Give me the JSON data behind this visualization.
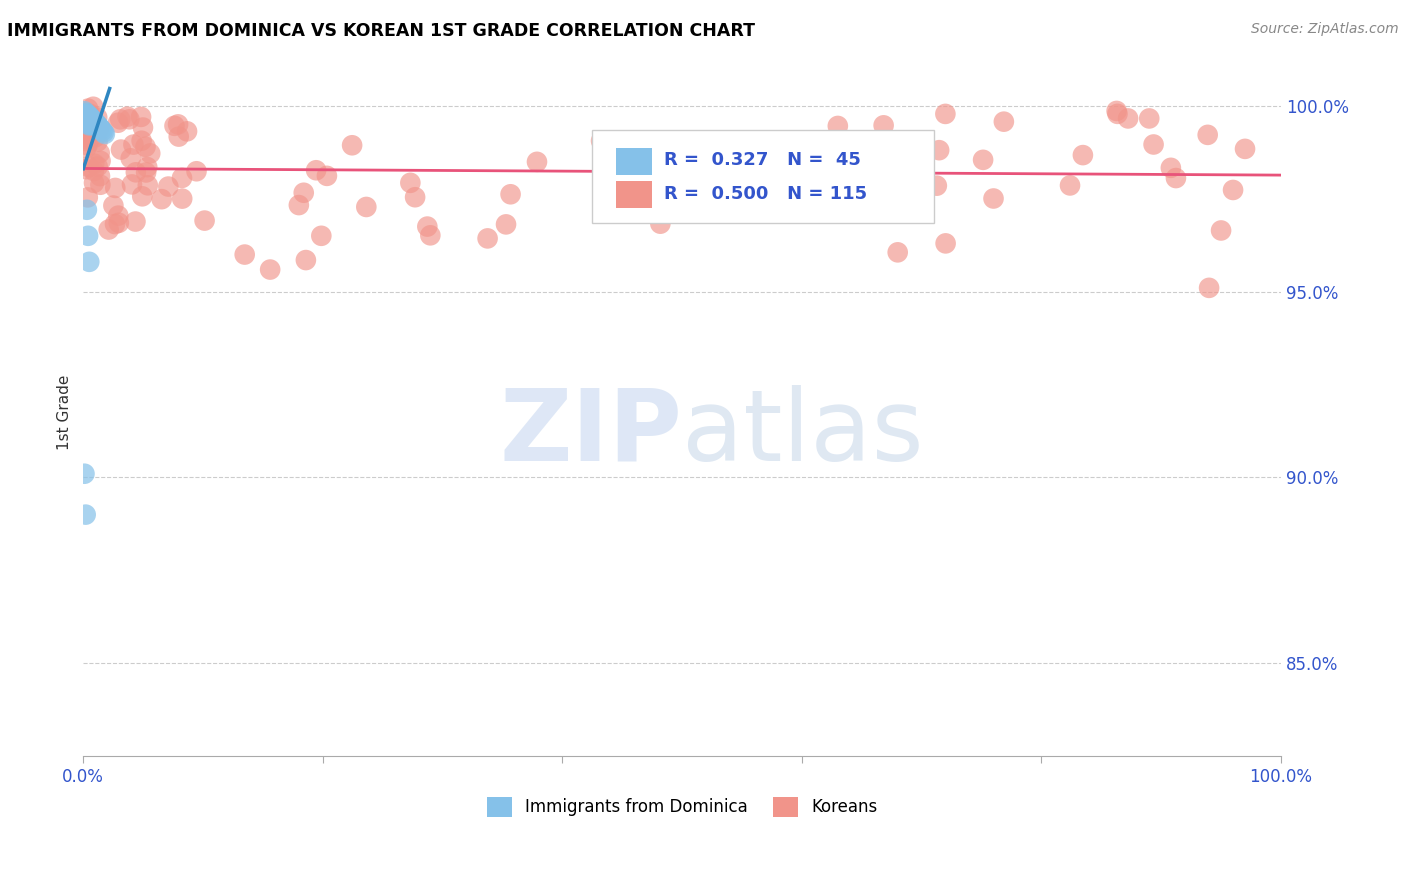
{
  "title": "IMMIGRANTS FROM DOMINICA VS KOREAN 1ST GRADE CORRELATION CHART",
  "source": "Source: ZipAtlas.com",
  "ylabel": "1st Grade",
  "ylabel_right_labels": [
    "100.0%",
    "95.0%",
    "90.0%",
    "85.0%"
  ],
  "ylabel_right_positions": [
    1.0,
    0.95,
    0.9,
    0.85
  ],
  "xmin": 0.0,
  "xmax": 1.0,
  "ymin": 0.825,
  "ymax": 1.01,
  "dominica_R": 0.327,
  "dominica_N": 45,
  "korean_R": 0.5,
  "korean_N": 115,
  "dominica_color": "#85C1E9",
  "korean_color": "#F1948A",
  "dominica_line_color": "#2E86C1",
  "korean_line_color": "#E8537A",
  "legend_label_dominica": "Immigrants from Dominica",
  "legend_label_korean": "Koreans",
  "grid_color": "#CCCCCC",
  "background_color": "#FFFFFF",
  "legend_R1": "R =  0.327",
  "legend_N1": "N =  45",
  "legend_R2": "R =  0.500",
  "legend_N2": "N = 115",
  "legend_text_color": "#3355CC",
  "watermark_zip_color": "#C8D8F0",
  "watermark_atlas_color": "#B8CCE4",
  "source_color": "#888888",
  "axis_label_color": "#3355CC",
  "ylabel_color": "#333333"
}
